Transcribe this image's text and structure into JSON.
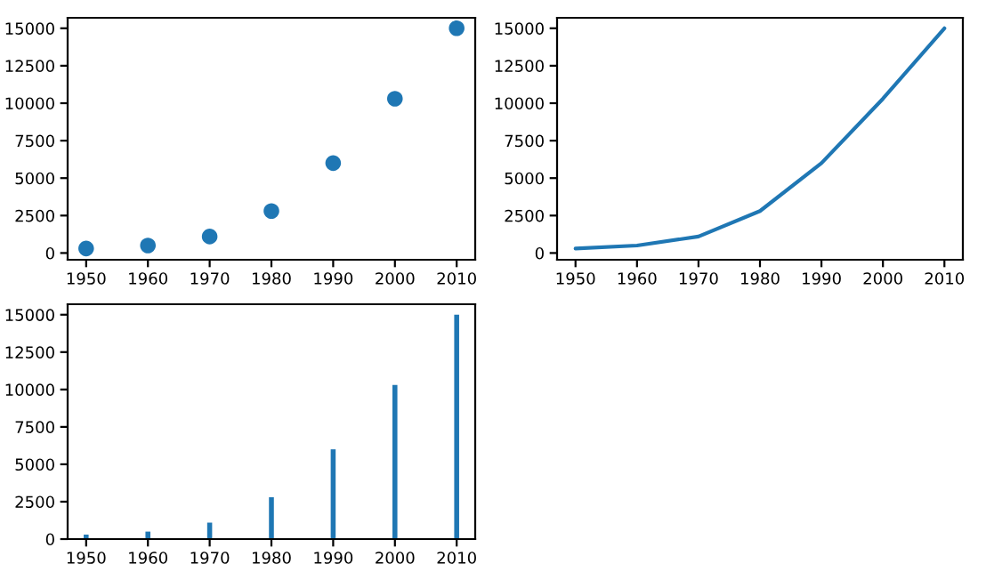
{
  "chart_data": [
    {
      "type": "scatter",
      "x": [
        1950,
        1960,
        1970,
        1980,
        1990,
        2000,
        2010
      ],
      "values": [
        300,
        500,
        1100,
        2800,
        6000,
        10300,
        15000
      ],
      "color": "#1f77b4",
      "marker": "circle",
      "xlim": [
        1947,
        2013
      ],
      "ylim": [
        -450,
        15700
      ],
      "xticks": [
        1950,
        1960,
        1970,
        1980,
        1990,
        2000,
        2010
      ],
      "yticks": [
        0,
        2500,
        5000,
        7500,
        10000,
        12500,
        15000
      ],
      "grid": false,
      "legend": false
    },
    {
      "type": "line",
      "x": [
        1950,
        1960,
        1970,
        1980,
        1990,
        2000,
        2010
      ],
      "values": [
        300,
        500,
        1100,
        2800,
        6000,
        10300,
        15000
      ],
      "color": "#1f77b4",
      "line_style": "solid",
      "xlim": [
        1947,
        2013
      ],
      "ylim": [
        -450,
        15700
      ],
      "xticks": [
        1950,
        1960,
        1970,
        1980,
        1990,
        2000,
        2010
      ],
      "yticks": [
        0,
        2500,
        5000,
        7500,
        10000,
        12500,
        15000
      ],
      "grid": false,
      "legend": false
    },
    {
      "type": "bar",
      "x": [
        1950,
        1960,
        1970,
        1980,
        1990,
        2000,
        2010
      ],
      "values": [
        300,
        500,
        1100,
        2800,
        6000,
        10300,
        15000
      ],
      "color": "#1f77b4",
      "xlim": [
        1947,
        2013
      ],
      "ylim": [
        0,
        15700
      ],
      "xticks": [
        1950,
        1960,
        1970,
        1980,
        1990,
        2000,
        2010
      ],
      "yticks": [
        0,
        2500,
        5000,
        7500,
        10000,
        12500,
        15000
      ],
      "grid": false,
      "legend": false
    }
  ]
}
